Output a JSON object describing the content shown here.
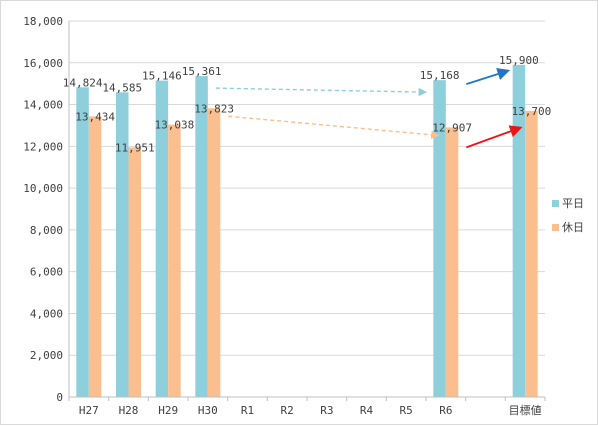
{
  "chart_data": {
    "type": "bar",
    "categories": [
      "H27",
      "H28",
      "H29",
      "H30",
      "R1",
      "R2",
      "R3",
      "R4",
      "R5",
      "R6",
      "",
      "目標値"
    ],
    "series": [
      {
        "name": "平日",
        "color": "#8ecfdc",
        "values": [
          14824,
          14585,
          15146,
          15361,
          null,
          null,
          null,
          null,
          null,
          15168,
          null,
          15900
        ]
      },
      {
        "name": "休日",
        "color": "#fbbf8f",
        "values": [
          13434,
          11951,
          13038,
          13823,
          null,
          null,
          null,
          null,
          null,
          12907,
          null,
          13700
        ]
      }
    ],
    "data_labels": [
      [
        "14,824",
        "14,585",
        "15,146",
        "15,361",
        "",
        "",
        "",
        "",
        "",
        "15,168",
        "",
        "15,900"
      ],
      [
        "13,434",
        "11,951",
        "13,038",
        "13,823",
        "",
        "",
        "",
        "",
        "",
        "12,907",
        "",
        "13,700"
      ]
    ],
    "y_ticks": [
      "0",
      "2,000",
      "4,000",
      "6,000",
      "8,000",
      "10,000",
      "12,000",
      "14,000",
      "16,000",
      "18,000"
    ],
    "ylim": [
      0,
      18000
    ],
    "grid": true,
    "legend_position": "right",
    "annotations": [
      {
        "type": "dashed-arrow",
        "from": [
          "H30",
          15361
        ],
        "to": [
          "R6",
          15168
        ],
        "color": "#8ecfdc"
      },
      {
        "type": "dashed-arrow",
        "from": [
          "H30",
          13823
        ],
        "to": [
          "R6",
          12907
        ],
        "color": "#fbbf8f"
      },
      {
        "type": "solid-arrow",
        "from": [
          "R6",
          15168
        ],
        "to": [
          "目標値",
          15900
        ],
        "color": "#1f77c8"
      },
      {
        "type": "solid-arrow",
        "from": [
          "R6",
          12907
        ],
        "to": [
          "目標値",
          13700
        ],
        "color": "#e8151b"
      }
    ]
  }
}
